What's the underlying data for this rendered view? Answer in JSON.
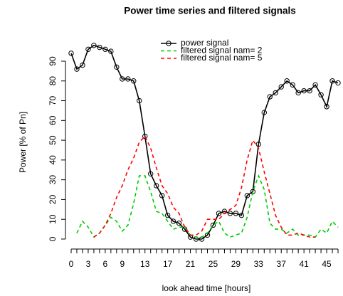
{
  "chart_data": {
    "type": "line",
    "title": "Power time series and filtered signals",
    "xlabel": "look ahead time [hours]",
    "ylabel": "Power [% of Pn]",
    "x": [
      0,
      1,
      2,
      3,
      4,
      5,
      6,
      7,
      8,
      9,
      10,
      11,
      12,
      13,
      14,
      15,
      16,
      17,
      18,
      19,
      20,
      21,
      22,
      23,
      24,
      25,
      26,
      27,
      28,
      29,
      30,
      31,
      32,
      33,
      34,
      35,
      36,
      37,
      38,
      39,
      40,
      41,
      42,
      43,
      44,
      45,
      46,
      47
    ],
    "series": [
      {
        "name": "power signal",
        "color": "#000000",
        "dash": false,
        "marker": "circle",
        "values": [
          94,
          86,
          88,
          96,
          98,
          97,
          96,
          95,
          87,
          81,
          81,
          80,
          70,
          52,
          33,
          27,
          22,
          12,
          9,
          8,
          5,
          1,
          0,
          0,
          2,
          7,
          13,
          14,
          13,
          13,
          12,
          22,
          24,
          48,
          64,
          72,
          74,
          77,
          80,
          78,
          74,
          75,
          75,
          78,
          73,
          67,
          80,
          79
        ]
      },
      {
        "name": "filtered signal nam= 2",
        "color": "#00cc00",
        "dash": true,
        "values": [
          null,
          3,
          9,
          6,
          1,
          3,
          7,
          11,
          9,
          4,
          7,
          18,
          32,
          32,
          24,
          14,
          13,
          9,
          5,
          6,
          6,
          2,
          1,
          1,
          3,
          7,
          9,
          3,
          1,
          2,
          3,
          11,
          24,
          32,
          25,
          8,
          5,
          5,
          3,
          5,
          2,
          2,
          2,
          1,
          5,
          3,
          9,
          6
        ]
      },
      {
        "name": "filtered signal nam= 5",
        "color": "#ff0000",
        "dash": true,
        "values": [
          null,
          null,
          null,
          null,
          1,
          3,
          7,
          13,
          21,
          27,
          35,
          41,
          49,
          52,
          46,
          36,
          27,
          23,
          16,
          13,
          6,
          2,
          2,
          4,
          10,
          10,
          10,
          13,
          15,
          17,
          26,
          40,
          50,
          46,
          34,
          23,
          12,
          6,
          2,
          2,
          3,
          2,
          1,
          1,
          null,
          null,
          null,
          null
        ]
      }
    ],
    "xlim": [
      -0.6,
      47.8
    ],
    "ylim": [
      -3,
      100
    ],
    "xticks": [
      0,
      3,
      6,
      9,
      13,
      17,
      21,
      25,
      29,
      33,
      37,
      41,
      45
    ],
    "x_tick_marks": [
      0,
      1,
      2,
      3,
      4,
      5,
      6,
      7,
      8,
      9,
      10,
      11,
      12,
      13,
      14,
      15,
      16,
      17,
      18,
      19,
      20,
      21,
      22,
      23,
      24,
      25,
      26,
      27,
      28,
      29,
      30,
      31,
      32,
      33,
      34,
      35,
      36,
      37,
      38,
      39,
      40,
      41,
      42,
      43,
      44,
      45,
      46,
      47
    ],
    "yticks": [
      0,
      10,
      20,
      30,
      40,
      50,
      60,
      70,
      80,
      90
    ],
    "legend": "top",
    "grid": false
  }
}
